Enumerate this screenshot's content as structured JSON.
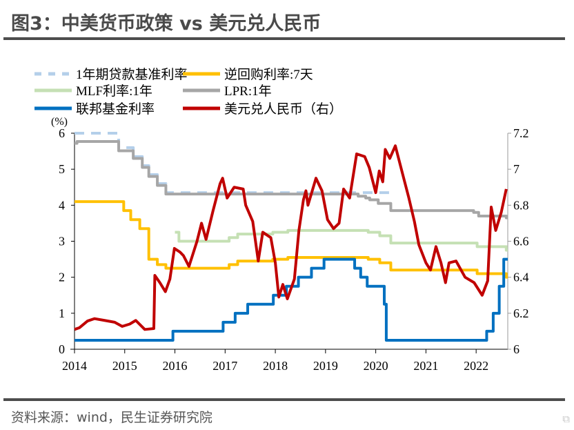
{
  "title": "图3：中美货币政策 vs 美元兑人民币",
  "source": "资料来源：wind，民生证券研究院",
  "watermark": "格隆汇",
  "chart_data": {
    "type": "line",
    "title": "图3：中美货币政策 vs 美元兑人民币",
    "left_axis": {
      "label": "(%)",
      "range": [
        0,
        6
      ],
      "ticks": [
        "0",
        "1",
        "2",
        "3",
        "4",
        "5",
        "6"
      ]
    },
    "right_axis": {
      "label": "",
      "range": [
        6,
        7.2
      ],
      "ticks": [
        "6",
        "6.2",
        "6.4",
        "6.6",
        "6.8",
        "7",
        "7.2"
      ]
    },
    "x_axis": {
      "range": [
        2014,
        2022.63
      ],
      "ticks": [
        "2014",
        "2015",
        "2016",
        "2017",
        "2018",
        "2019",
        "2020",
        "2021",
        "2022"
      ]
    },
    "grid": false,
    "legend_placement": "top",
    "series": [
      {
        "name": "1年期贷款基准利率",
        "color": "#b4cfea",
        "dashed": true,
        "axis": "left",
        "step": true,
        "x": [
          2014.0,
          2014.88,
          2015.17,
          2015.35,
          2015.48,
          2015.65,
          2015.82,
          2020.33
        ],
        "y": [
          6.0,
          5.6,
          5.35,
          5.1,
          4.85,
          4.6,
          4.35,
          4.35
        ]
      },
      {
        "name": "逆回购利率:7天",
        "color": "#ffc000",
        "axis": "left",
        "step": true,
        "x": [
          2014.0,
          2014.98,
          2015.12,
          2015.3,
          2015.48,
          2015.65,
          2015.82,
          2017.08,
          2017.25,
          2017.95,
          2018.25,
          2019.85,
          2020.08,
          2020.3,
          2022.02,
          2022.6,
          2022.63
        ],
        "y": [
          4.1,
          3.85,
          3.6,
          3.35,
          2.5,
          2.35,
          2.25,
          2.35,
          2.45,
          2.5,
          2.55,
          2.5,
          2.4,
          2.2,
          2.1,
          2.0,
          2.0
        ]
      },
      {
        "name": "MLF利率:1年",
        "color": "#c5e0b4",
        "axis": "left",
        "step": true,
        "x": [
          2016.0,
          2016.08,
          2017.08,
          2017.25,
          2017.95,
          2018.25,
          2019.85,
          2020.08,
          2020.3,
          2022.02,
          2022.6,
          2022.63
        ],
        "y": [
          3.25,
          3.0,
          3.1,
          3.2,
          3.25,
          3.3,
          3.25,
          3.15,
          2.95,
          2.85,
          2.75,
          2.75
        ]
      },
      {
        "name": "LPR:1年",
        "color": "#a6a6a6",
        "axis": "left",
        "step": true,
        "x": [
          2014.0,
          2014.05,
          2014.88,
          2015.17,
          2015.35,
          2015.48,
          2015.65,
          2015.82,
          2019.65,
          2019.8,
          2019.88,
          2020.05,
          2020.3,
          2021.95,
          2022.05,
          2022.6,
          2022.63
        ],
        "y": [
          5.72,
          5.77,
          5.51,
          5.3,
          5.05,
          4.8,
          4.55,
          4.31,
          4.25,
          4.2,
          4.15,
          4.05,
          3.85,
          3.8,
          3.7,
          3.65,
          3.65
        ]
      },
      {
        "name": "联邦基金利率",
        "color": "#0070c0",
        "axis": "left",
        "step": true,
        "x": [
          2014.0,
          2015.96,
          2016.96,
          2017.2,
          2017.45,
          2017.96,
          2018.22,
          2018.46,
          2018.72,
          2018.97,
          2019.58,
          2019.7,
          2019.83,
          2020.17,
          2020.21,
          2022.21,
          2022.34,
          2022.46,
          2022.55,
          2022.63
        ],
        "y": [
          0.25,
          0.5,
          0.75,
          1.0,
          1.25,
          1.5,
          1.75,
          2.0,
          2.25,
          2.5,
          2.25,
          2.0,
          1.75,
          1.25,
          0.25,
          0.5,
          1.0,
          1.75,
          2.5,
          2.5
        ]
      },
      {
        "name": "美元兑人民币（右）",
        "color": "#c00000",
        "axis": "right",
        "step": false,
        "x": [
          2014.0,
          2014.1,
          2014.26,
          2014.4,
          2014.6,
          2014.8,
          2014.95,
          2015.1,
          2015.22,
          2015.4,
          2015.58,
          2015.6,
          2015.7,
          2015.81,
          2015.9,
          2015.99,
          2016.1,
          2016.17,
          2016.28,
          2016.44,
          2016.53,
          2016.62,
          2016.76,
          2016.9,
          2016.95,
          2017.04,
          2017.18,
          2017.36,
          2017.41,
          2017.55,
          2017.66,
          2017.75,
          2017.91,
          2018.0,
          2018.07,
          2018.15,
          2018.24,
          2018.38,
          2018.47,
          2018.56,
          2018.61,
          2018.65,
          2018.81,
          2018.93,
          2019.04,
          2019.16,
          2019.27,
          2019.36,
          2019.48,
          2019.62,
          2019.78,
          2019.87,
          2020.0,
          2020.07,
          2020.14,
          2020.19,
          2020.28,
          2020.39,
          2020.52,
          2020.66,
          2020.77,
          2020.86,
          2021.0,
          2021.09,
          2021.2,
          2021.3,
          2021.39,
          2021.46,
          2021.6,
          2021.78,
          2021.96,
          2022.12,
          2022.23,
          2022.3,
          2022.39,
          2022.5,
          2022.6
        ],
        "y": [
          6.11,
          6.12,
          6.157,
          6.17,
          6.16,
          6.15,
          6.127,
          6.14,
          6.16,
          6.11,
          6.115,
          6.41,
          6.37,
          6.32,
          6.39,
          6.56,
          6.54,
          6.52,
          6.46,
          6.6,
          6.7,
          6.61,
          6.77,
          6.92,
          6.95,
          6.84,
          6.9,
          6.89,
          6.8,
          6.71,
          6.49,
          6.65,
          6.62,
          6.48,
          6.29,
          6.36,
          6.28,
          6.39,
          6.66,
          6.83,
          6.88,
          6.8,
          6.95,
          6.88,
          6.72,
          6.67,
          6.7,
          6.89,
          6.84,
          7.085,
          7.07,
          7.01,
          6.87,
          6.99,
          6.93,
          7.11,
          7.06,
          7.13,
          6.99,
          6.84,
          6.71,
          6.58,
          6.48,
          6.44,
          6.57,
          6.48,
          6.37,
          6.48,
          6.49,
          6.4,
          6.37,
          6.3,
          6.38,
          6.79,
          6.66,
          6.76,
          6.89
        ]
      }
    ]
  }
}
